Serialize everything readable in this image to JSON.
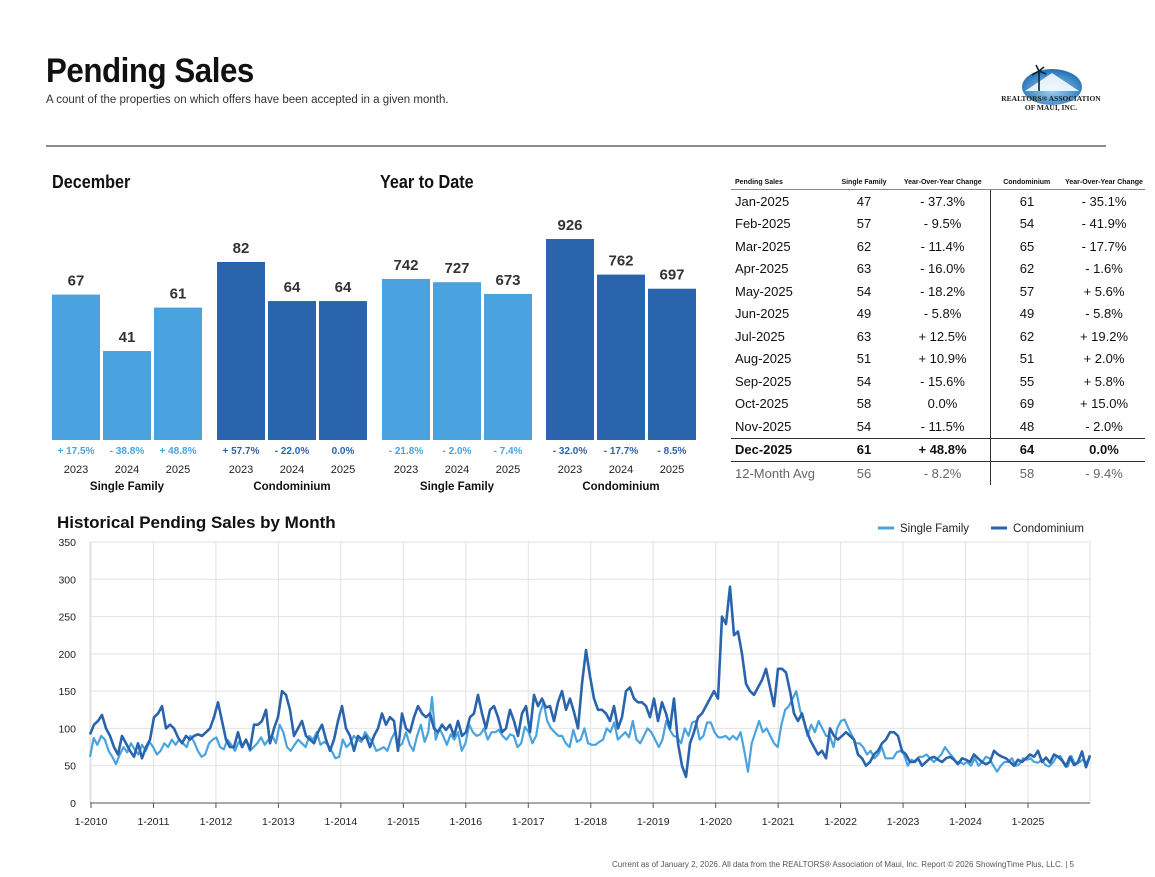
{
  "header": {
    "title": "Pending Sales",
    "subtitle": "A count of the properties on which offers have been accepted in a given month.",
    "logo_text_1": "REALTORS® ASSOCIATION",
    "logo_text_2": "OF MAUI, INC."
  },
  "colors": {
    "single_family": "#4aa3df",
    "condominium": "#2a64ad",
    "bar_sf": "#4aa3df",
    "bar_condo": "#2a64ad"
  },
  "chart_data": [
    {
      "type": "bar",
      "title": "December",
      "groups": [
        {
          "name": "Single Family",
          "categories": [
            "2023",
            "2024",
            "2025"
          ],
          "values": [
            67,
            41,
            61
          ],
          "changes": [
            "+ 17.5%",
            "- 38.8%",
            "+ 48.8%"
          ]
        },
        {
          "name": "Condominium",
          "categories": [
            "2023",
            "2024",
            "2025"
          ],
          "values": [
            82,
            64,
            64
          ],
          "changes": [
            "+ 57.7%",
            "- 22.0%",
            "0.0%"
          ]
        }
      ],
      "ylim": [
        0,
        90
      ]
    },
    {
      "type": "bar",
      "title": "Year to Date",
      "groups": [
        {
          "name": "Single Family",
          "categories": [
            "2023",
            "2024",
            "2025"
          ],
          "values": [
            742,
            727,
            673
          ],
          "changes": [
            "- 21.8%",
            "- 2.0%",
            "- 7.4%"
          ]
        },
        {
          "name": "Condominium",
          "categories": [
            "2023",
            "2024",
            "2025"
          ],
          "values": [
            926,
            762,
            697
          ],
          "changes": [
            "- 32.0%",
            "- 17.7%",
            "- 8.5%"
          ]
        }
      ],
      "ylim": [
        0,
        1000
      ]
    },
    {
      "type": "table",
      "headers": [
        "Pending Sales",
        "Single Family",
        "Year-Over-Year Change",
        "Condominium",
        "Year-Over-Year Change"
      ],
      "rows": [
        [
          "Jan-2025",
          "47",
          "- 37.3%",
          "61",
          "- 35.1%"
        ],
        [
          "Feb-2025",
          "57",
          "- 9.5%",
          "54",
          "- 41.9%"
        ],
        [
          "Mar-2025",
          "62",
          "- 11.4%",
          "65",
          "- 17.7%"
        ],
        [
          "Apr-2025",
          "63",
          "- 16.0%",
          "62",
          "- 1.6%"
        ],
        [
          "May-2025",
          "54",
          "- 18.2%",
          "57",
          "+ 5.6%"
        ],
        [
          "Jun-2025",
          "49",
          "- 5.8%",
          "49",
          "- 5.8%"
        ],
        [
          "Jul-2025",
          "63",
          "+ 12.5%",
          "62",
          "+ 19.2%"
        ],
        [
          "Aug-2025",
          "51",
          "+ 10.9%",
          "51",
          "+ 2.0%"
        ],
        [
          "Sep-2025",
          "54",
          "- 15.6%",
          "55",
          "+ 5.8%"
        ],
        [
          "Oct-2025",
          "58",
          "0.0%",
          "69",
          "+ 15.0%"
        ],
        [
          "Nov-2025",
          "54",
          "- 11.5%",
          "48",
          "- 2.0%"
        ],
        [
          "Dec-2025",
          "61",
          "+ 48.8%",
          "64",
          "0.0%"
        ],
        [
          "12-Month Avg",
          "56",
          "- 8.2%",
          "58",
          "- 9.4%"
        ]
      ]
    },
    {
      "type": "line",
      "title": "Historical Pending Sales by Month",
      "ylim": [
        0,
        350
      ],
      "yticks": [
        0,
        50,
        100,
        150,
        200,
        250,
        300,
        350
      ],
      "xticks": [
        "1-2010",
        "1-2011",
        "1-2012",
        "1-2013",
        "1-2014",
        "1-2015",
        "1-2016",
        "1-2017",
        "1-2018",
        "1-2019",
        "1-2020",
        "1-2021",
        "1-2022",
        "1-2023",
        "1-2024",
        "1-2025"
      ],
      "legend": [
        "Single Family",
        "Condominium"
      ],
      "legend_position": "top-right",
      "series": [
        {
          "name": "Single Family",
          "values": [
            62,
            87,
            78,
            90,
            85,
            70,
            62,
            52,
            65,
            75,
            68,
            80,
            72,
            65,
            78,
            70,
            82,
            75,
            65,
            70,
            80,
            75,
            85,
            78,
            85,
            80,
            75,
            90,
            82,
            70,
            62,
            65,
            80,
            85,
            88,
            75,
            72,
            85,
            78,
            70,
            82,
            75,
            85,
            70,
            75,
            80,
            88,
            78,
            85,
            90,
            80,
            105,
            95,
            75,
            70,
            78,
            85,
            80,
            75,
            90,
            85,
            95,
            78,
            82,
            78,
            70,
            60,
            62,
            85,
            75,
            80,
            90,
            85,
            82,
            95,
            88,
            82,
            70,
            72,
            75,
            70,
            85,
            95,
            75,
            80,
            95,
            78,
            70,
            90,
            105,
            82,
            95,
            142,
            85,
            100,
            90,
            78,
            92,
            85,
            95,
            70,
            80,
            105,
            95,
            90,
            92,
            100,
            85,
            95,
            95,
            98,
            90,
            85,
            92,
            90,
            75,
            80,
            102,
            95,
            80,
            90,
            120,
            135,
            110,
            100,
            95,
            90,
            90,
            80,
            75,
            98,
            82,
            85,
            100,
            80,
            78,
            78,
            82,
            85,
            100,
            95,
            108,
            85,
            90,
            95,
            88,
            110,
            85,
            80,
            90,
            100,
            95,
            85,
            75,
            85,
            110,
            98,
            90,
            88,
            80,
            100,
            90,
            108,
            110,
            85,
            90,
            108,
            108,
            95,
            88,
            88,
            90,
            85,
            90,
            85,
            95,
            70,
            42,
            80,
            95,
            110,
            95,
            100,
            90,
            80,
            75,
            105,
            125,
            130,
            140,
            150,
            125,
            110,
            90,
            105,
            95,
            110,
            100,
            90,
            90,
            75,
            100,
            110,
            112,
            100,
            90,
            80,
            80,
            75,
            65,
            70,
            60,
            65,
            75,
            60,
            60,
            60,
            68,
            70,
            65,
            50,
            58,
            55,
            62,
            62,
            65,
            60,
            55,
            60,
            65,
            75,
            68,
            62,
            55,
            55,
            52,
            55,
            50,
            60,
            50,
            55,
            62,
            60,
            50,
            42,
            50,
            55,
            55,
            60,
            50,
            52,
            60,
            58,
            60,
            55,
            54,
            58,
            51,
            49,
            54,
            62,
            63,
            54,
            49,
            63,
            51,
            54,
            58,
            54,
            61
          ]
        },
        {
          "name": "Condominium",
          "values": [
            92,
            105,
            110,
            118,
            100,
            90,
            75,
            65,
            90,
            80,
            70,
            62,
            80,
            60,
            75,
            85,
            115,
            120,
            130,
            100,
            105,
            100,
            88,
            80,
            90,
            85,
            90,
            92,
            90,
            95,
            100,
            115,
            135,
            110,
            85,
            75,
            75,
            95,
            75,
            85,
            72,
            105,
            105,
            110,
            125,
            80,
            100,
            115,
            150,
            145,
            125,
            90,
            100,
            110,
            90,
            85,
            80,
            95,
            105,
            85,
            70,
            85,
            110,
            130,
            100,
            90,
            70,
            90,
            85,
            90,
            75,
            90,
            100,
            120,
            105,
            115,
            110,
            70,
            120,
            100,
            95,
            115,
            130,
            120,
            115,
            120,
            100,
            95,
            105,
            98,
            105,
            90,
            110,
            90,
            95,
            115,
            120,
            145,
            120,
            100,
            125,
            130,
            115,
            95,
            100,
            125,
            110,
            90,
            120,
            130,
            95,
            145,
            130,
            140,
            128,
            130,
            110,
            135,
            150,
            125,
            140,
            122,
            100,
            160,
            205,
            170,
            140,
            125,
            125,
            120,
            110,
            130,
            100,
            115,
            150,
            155,
            140,
            135,
            135,
            130,
            115,
            140,
            110,
            135,
            120,
            100,
            140,
            80,
            50,
            35,
            80,
            95,
            115,
            120,
            130,
            140,
            150,
            140,
            250,
            240,
            290,
            225,
            230,
            200,
            160,
            150,
            145,
            155,
            165,
            180,
            155,
            130,
            180,
            180,
            175,
            150,
            120,
            110,
            120,
            100,
            85,
            75,
            65,
            70,
            60,
            100,
            90,
            85,
            90,
            95,
            90,
            85,
            65,
            60,
            50,
            55,
            65,
            70,
            80,
            85,
            95,
            95,
            90,
            70,
            65,
            55,
            55,
            60,
            50,
            55,
            60,
            62,
            58,
            55,
            60,
            62,
            58,
            52,
            60,
            58,
            55,
            65,
            60,
            55,
            52,
            55,
            70,
            65,
            62,
            60,
            55,
            50,
            58,
            55,
            60,
            65,
            62,
            70,
            55,
            61,
            54,
            65,
            62,
            57,
            49,
            62,
            51,
            55,
            69,
            48,
            64
          ]
        }
      ]
    }
  ],
  "footer": "Current as of January 2, 2026. All data from the REALTORS® Association of Maui, Inc. Report © 2026 ShowingTime Plus, LLC.  |  5"
}
